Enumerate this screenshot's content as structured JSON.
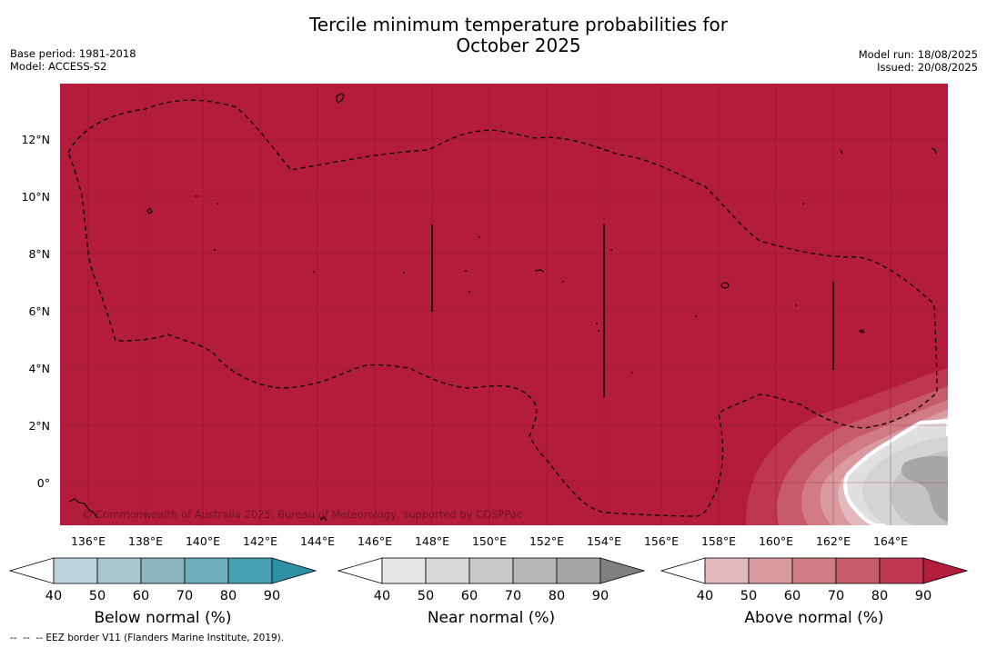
{
  "title_line1": "Tercile minimum temperature probabilities for",
  "title_line2": "October 2025",
  "info_left": [
    "Base period: 1981-2018",
    "Model: ACCESS-S2"
  ],
  "info_right": [
    "Model run: 18/08/2025",
    "Issued: 20/08/2025"
  ],
  "copyright": "© Commonwealth of Australia 2025, Bureau of Meteorology, supported by COSPPac",
  "footnote": "--  --  -- EEZ border V11 (Flanders Marine Institute, 2019).",
  "lon_ticks": [
    "136°E",
    "138°E",
    "140°E",
    "142°E",
    "144°E",
    "146°E",
    "148°E",
    "150°E",
    "152°E",
    "154°E",
    "156°E",
    "158°E",
    "160°E",
    "162°E",
    "164°E"
  ],
  "lat_ticks": [
    "12°N",
    "10°N",
    "8°N",
    "6°N",
    "4°N",
    "2°N",
    "0°"
  ],
  "colors": {
    "above_90": "#b31c3a",
    "above_80": "#bf3650",
    "above_70": "#c85b6a",
    "above_60": "#d07b85",
    "above_50": "#d99aa1",
    "above_40": "#e2b9bd",
    "near_40": "#e6e6e6",
    "near_50": "#d9d9d9",
    "near_60": "#c8c8c8",
    "near_70": "#b7b7b7",
    "near_80": "#a6a6a6",
    "near_90": "#808080",
    "below_40": "#bcd4dc",
    "below_50": "#a6c7ce",
    "below_60": "#8cb7c1",
    "below_70": "#6faebc",
    "below_80": "#47a0b0",
    "below_90": "#2f90a5"
  },
  "legends": [
    {
      "label": "Below normal (%)",
      "ticks": [
        "40",
        "50",
        "60",
        "70",
        "80",
        "90"
      ],
      "colors": [
        "#bcd4dc",
        "#a6c7ce",
        "#8cb7c1",
        "#6faebc",
        "#47a0b0"
      ],
      "tip": "#2f90a5"
    },
    {
      "label": "Near normal (%)",
      "ticks": [
        "40",
        "50",
        "60",
        "70",
        "80",
        "90"
      ],
      "colors": [
        "#e6e6e6",
        "#d9d9d9",
        "#c8c8c8",
        "#b7b7b7",
        "#a6a6a6"
      ],
      "tip": "#808080"
    },
    {
      "label": "Above normal (%)",
      "ticks": [
        "40",
        "50",
        "60",
        "70",
        "80",
        "90"
      ],
      "colors": [
        "#e2b9bd",
        "#d99aa1",
        "#d07b85",
        "#c85b6a",
        "#bf3650"
      ],
      "tip": "#b31c3a"
    }
  ]
}
